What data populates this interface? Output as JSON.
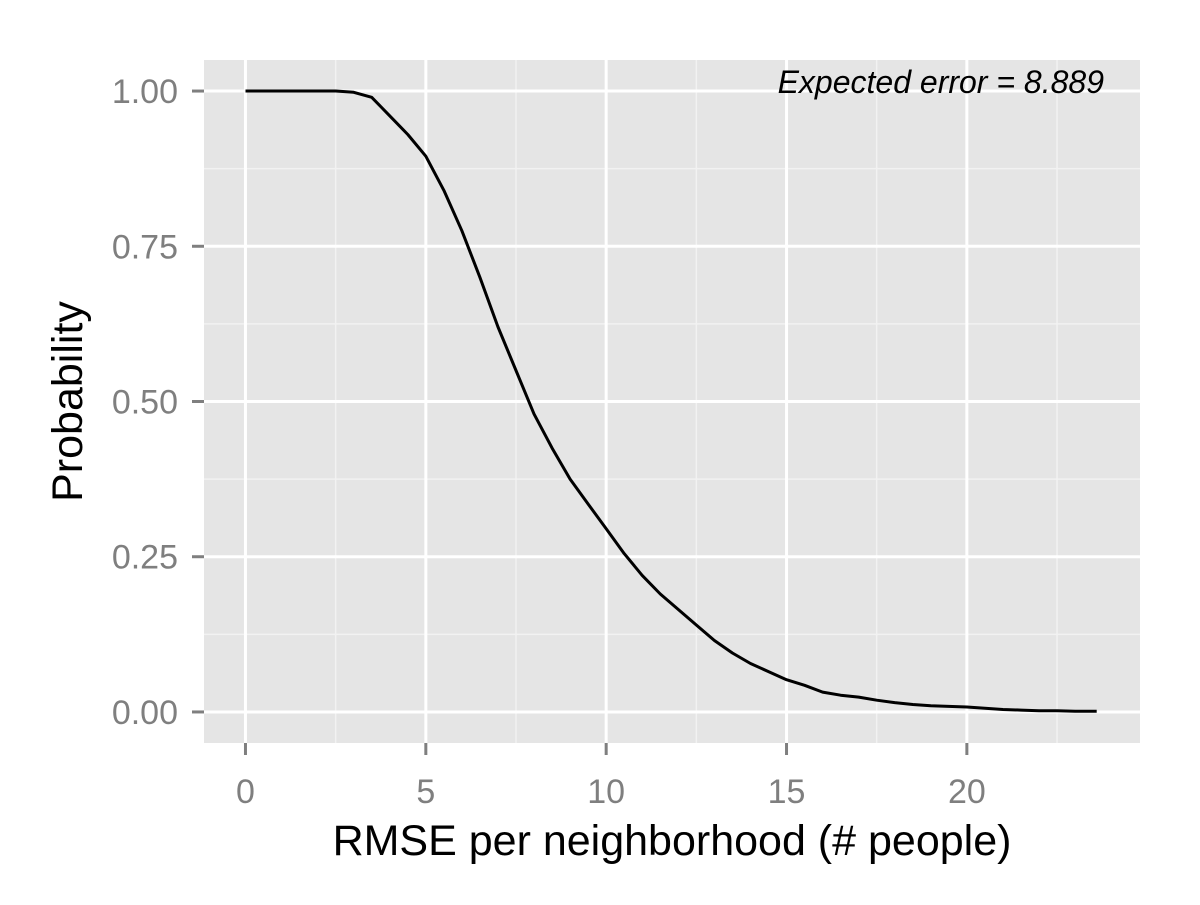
{
  "chart_data": {
    "type": "line",
    "title": "",
    "xlabel": "RMSE per neighborhood (# people)",
    "ylabel": "Probability",
    "annotation": "Expected error = 8.889",
    "xlim": [
      -1.15,
      24.8
    ],
    "ylim": [
      -0.05,
      1.05
    ],
    "x_ticks": [
      0,
      5,
      10,
      15,
      20
    ],
    "x_tick_labels": [
      "0",
      "5",
      "10",
      "15",
      "20"
    ],
    "y_ticks": [
      0,
      0.25,
      0.5,
      0.75,
      1
    ],
    "y_tick_labels": [
      "0.00",
      "0.25",
      "0.50",
      "0.75",
      "1.00"
    ],
    "grid": true,
    "legend": "none",
    "series": [
      {
        "x": [
          0,
          0.5,
          1,
          1.5,
          2,
          2.5,
          3,
          3.5,
          4,
          4.5,
          5,
          5.5,
          6,
          6.5,
          7,
          7.5,
          8,
          8.5,
          9,
          9.5,
          10,
          10.5,
          11,
          11.5,
          12,
          12.5,
          13,
          13.5,
          14,
          14.5,
          15,
          15.5,
          16,
          16.5,
          17,
          17.5,
          18,
          18.5,
          19,
          19.5,
          20,
          20.5,
          21,
          21.5,
          22,
          22.5,
          23,
          23.6
        ],
        "y": [
          1.0,
          1.0,
          1.0,
          1.0,
          1.0,
          1.0,
          0.998,
          0.99,
          0.96,
          0.93,
          0.895,
          0.84,
          0.775,
          0.7,
          0.62,
          0.55,
          0.48,
          0.425,
          0.375,
          0.335,
          0.295,
          0.255,
          0.22,
          0.19,
          0.165,
          0.14,
          0.115,
          0.095,
          0.078,
          0.065,
          0.052,
          0.043,
          0.032,
          0.027,
          0.024,
          0.019,
          0.015,
          0.012,
          0.01,
          0.009,
          0.008,
          0.006,
          0.004,
          0.003,
          0.002,
          0.002,
          0.001,
          0.001
        ]
      }
    ],
    "colors": {
      "panel_background": "#e5e5e5",
      "grid_major": "#ffffff",
      "grid_minor": "#f2f2f2",
      "line": "#000000",
      "tick_label": "#7f7f7f",
      "axis_title": "#000000",
      "tick_mark": "#7f7f7f"
    }
  }
}
